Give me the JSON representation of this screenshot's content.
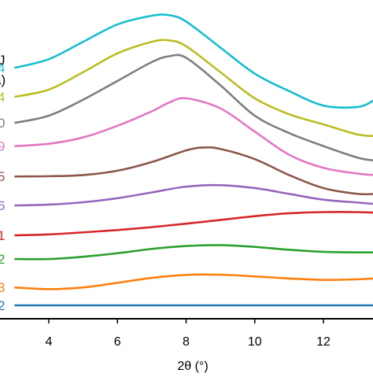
{
  "chart_data": {
    "type": "line",
    "xlabel": "2θ (°)",
    "x_ticks": [
      4,
      6,
      8,
      10,
      12
    ],
    "xlim": [
      3,
      13.5
    ],
    "ylim": [
      0,
      10.1
    ],
    "grid": false,
    "legend": "left edge (cropped labels)",
    "series": [
      {
        "label_fragment": "4",
        "color": "#17becf",
        "x": [
          3,
          4,
          5,
          6,
          7,
          7.5,
          8,
          9,
          10,
          11,
          12,
          13,
          13.5
        ],
        "y": [
          8.2,
          8.5,
          9.1,
          9.7,
          10,
          10.02,
          9.8,
          8.9,
          8,
          7.4,
          6.9,
          6.85,
          7.1
        ]
      },
      {
        "label_fragment": "4",
        "color": "#bcbd22",
        "x": [
          3,
          4,
          5,
          6,
          7,
          7.5,
          8,
          9,
          10,
          11,
          12,
          13,
          13.5
        ],
        "y": [
          7.2,
          7.45,
          8.05,
          8.7,
          9.1,
          9.15,
          8.95,
          8.05,
          7.15,
          6.6,
          6.25,
          5.9,
          5.85
        ]
      },
      {
        "label_fragment": "0",
        "color": "#7f7f7f",
        "x": [
          3,
          4,
          5,
          6,
          7,
          7.5,
          8,
          9,
          10,
          11,
          12,
          13,
          13.5
        ],
        "y": [
          6.3,
          6.55,
          7.1,
          7.75,
          8.4,
          8.6,
          8.55,
          7.6,
          6.55,
          5.95,
          5.5,
          5.1,
          5
        ]
      },
      {
        "label_fragment": "9",
        "color": "#e377c2",
        "x": [
          3,
          4,
          5,
          6,
          7,
          7.5,
          8,
          9,
          10,
          11,
          12,
          13,
          13.5
        ],
        "y": [
          5.5,
          5.58,
          5.8,
          6.2,
          6.7,
          7,
          7.15,
          6.8,
          6,
          5.2,
          4.75,
          4.55,
          4.5
        ]
      },
      {
        "label_fragment": "5",
        "color": "#8c564b",
        "x": [
          3,
          4,
          5,
          6,
          7,
          8,
          8.5,
          9,
          10,
          11,
          12,
          13,
          13.5
        ],
        "y": [
          4.45,
          4.46,
          4.5,
          4.65,
          4.95,
          5.35,
          5.45,
          5.4,
          5.05,
          4.5,
          4.05,
          3.85,
          3.85
        ]
      },
      {
        "label_fragment": "6",
        "color": "#9467bd",
        "x": [
          3,
          4,
          5,
          6,
          7,
          8,
          9,
          10,
          11,
          12,
          13,
          13.5
        ],
        "y": [
          3.45,
          3.48,
          3.56,
          3.7,
          3.9,
          4.1,
          4.15,
          4.05,
          3.85,
          3.65,
          3.55,
          3.5
        ]
      },
      {
        "label_fragment": "1",
        "color": "#d62728",
        "x": [
          3,
          4,
          5,
          6,
          7,
          8,
          9,
          10,
          11,
          12,
          13,
          13.5
        ],
        "y": [
          2.42,
          2.45,
          2.52,
          2.6,
          2.7,
          2.82,
          2.95,
          3.08,
          3.18,
          3.22,
          3.22,
          3.2
        ]
      },
      {
        "label_fragment": "2",
        "color": "#2ca02c",
        "x": [
          3,
          4,
          5,
          6,
          7,
          8,
          9,
          10,
          11,
          12,
          13,
          13.5
        ],
        "y": [
          1.6,
          1.6,
          1.68,
          1.8,
          1.95,
          2.05,
          2.08,
          2.02,
          1.92,
          1.85,
          1.83,
          1.83
        ]
      },
      {
        "label_fragment": "3",
        "color": "#ff7f0e",
        "x": [
          3,
          4,
          5,
          6,
          7,
          8,
          9,
          10,
          11,
          12,
          13,
          13.5
        ],
        "y": [
          0.62,
          0.56,
          0.62,
          0.78,
          0.95,
          1.05,
          1.06,
          1.0,
          0.93,
          0.88,
          0.9,
          0.93
        ]
      },
      {
        "label_fragment": "2",
        "color": "#1f77b4",
        "x": [
          3,
          13.5
        ],
        "y": [
          0,
          0
        ]
      }
    ],
    "top_left_fragments": [
      "J",
      "a)"
    ]
  }
}
